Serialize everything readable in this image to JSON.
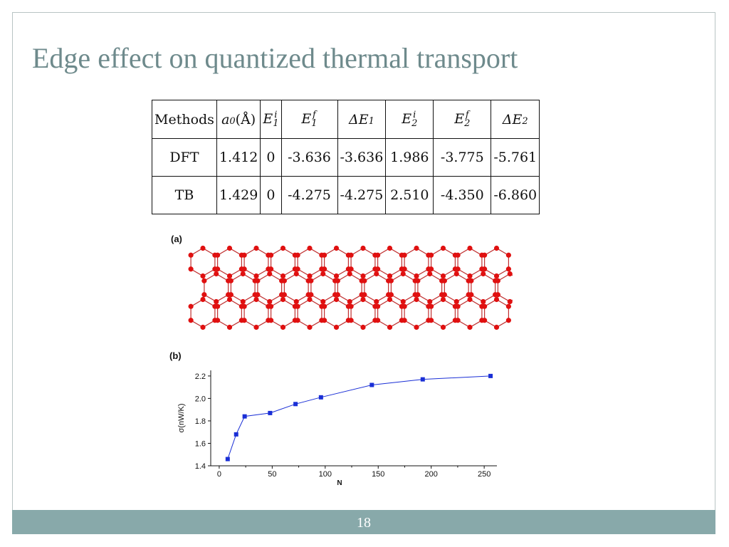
{
  "slide": {
    "title": "Edge effect on quantized thermal transport",
    "page_number": "18"
  },
  "table": {
    "headers": [
      "Methods",
      "a",
      "0",
      "(Å)",
      "E",
      "1",
      "i",
      "E",
      "1",
      "f",
      "ΔE",
      "1",
      "E",
      "2",
      "i",
      "E",
      "2",
      "f",
      "ΔE",
      "2"
    ],
    "rows": [
      {
        "method": "DFT",
        "a0": "1.412",
        "E1i": "0",
        "E1f": "-3.636",
        "dE1": "-3.636",
        "E2i": "1.986",
        "E2f": "-3.775",
        "dE2": "-5.761"
      },
      {
        "method": "TB",
        "a0": "1.429",
        "E1i": "0",
        "E1f": "-4.275",
        "dE1": "-4.275",
        "E2i": "2.510",
        "E2f": "-4.350",
        "dE2": "-6.860"
      }
    ]
  },
  "lattice": {
    "panel_label": "(a)",
    "atom_color": "#e01010",
    "bond_color": "#c03030"
  },
  "chart_data": {
    "type": "line",
    "panel_label": "(b)",
    "xlabel": "N",
    "ylabel": "σ(nW/K)",
    "xlim": [
      -8,
      262
    ],
    "ylim": [
      1.4,
      2.25
    ],
    "xticks": [
      0,
      50,
      100,
      150,
      200,
      250
    ],
    "yticks": [
      1.4,
      1.6,
      1.8,
      2.0,
      2.2
    ],
    "series": [
      {
        "x": [
          8,
          16,
          24,
          48,
          72,
          96,
          144,
          192,
          256
        ],
        "y": [
          1.46,
          1.68,
          1.84,
          1.87,
          1.95,
          2.01,
          2.12,
          2.17,
          2.2
        ],
        "color": "#1a2fd6",
        "marker": "square"
      }
    ],
    "grid": false,
    "legend": "none"
  }
}
